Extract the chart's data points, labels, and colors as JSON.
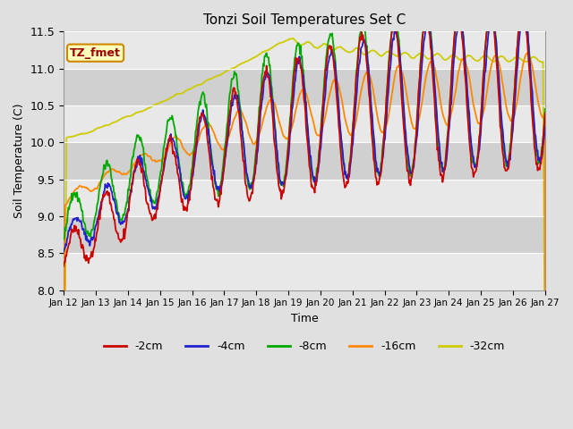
{
  "title": "Tonzi Soil Temperatures Set C",
  "xlabel": "Time",
  "ylabel": "Soil Temperature (C)",
  "ylim": [
    8.0,
    11.5
  ],
  "yticks": [
    8.0,
    8.5,
    9.0,
    9.5,
    10.0,
    10.5,
    11.0,
    11.5
  ],
  "label_box_text": "TZ_fmet",
  "legend_entries": [
    "-2cm",
    "-4cm",
    "-8cm",
    "-16cm",
    "-32cm"
  ],
  "line_colors": [
    "#cc0000",
    "#2222cc",
    "#00aa00",
    "#ff8800",
    "#cccc00"
  ],
  "fig_bg_color": "#e0e0e0",
  "plot_bg_color": "#d0d0d0",
  "band_color": "#e8e8e8",
  "xtick_labels": [
    "Jan 12",
    "Jan 13",
    "Jan 14",
    "Jan 15",
    "Jan 16",
    "Jan 17",
    "Jan 18",
    "Jan 19",
    "Jan 20",
    "Jan 21",
    "Jan 22",
    "Jan 23",
    "Jan 24",
    "Jan 25",
    "Jan 26",
    "Jan 27"
  ],
  "n_days": 15,
  "lw": 1.3
}
